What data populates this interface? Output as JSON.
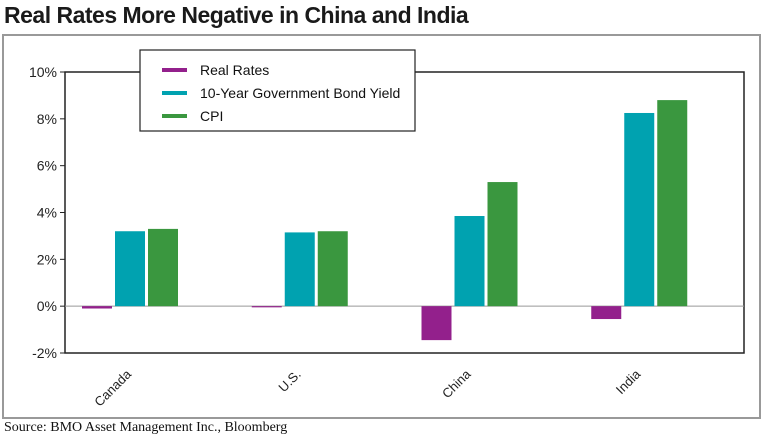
{
  "chart_data": {
    "type": "bar",
    "title": "Real Rates More Negative in China and India",
    "categories": [
      "Canada",
      "U.S.",
      "China",
      "India"
    ],
    "series": [
      {
        "name": "Real Rates",
        "color": "#93208c",
        "values": [
          -0.1,
          -0.05,
          -1.45,
          -0.55
        ]
      },
      {
        "name": "10-Year Government Bond Yield",
        "color": "#00a2b0",
        "values": [
          3.2,
          3.15,
          3.85,
          8.25
        ]
      },
      {
        "name": "CPI",
        "color": "#3a973f",
        "values": [
          3.3,
          3.2,
          5.3,
          8.8
        ]
      }
    ],
    "ylim": [
      -2,
      10
    ],
    "yticks": [
      -2,
      0,
      2,
      4,
      6,
      8,
      10
    ],
    "ytick_labels": [
      "-2%",
      "0%",
      "2%",
      "4%",
      "6%",
      "8%",
      "10%"
    ],
    "legend": "top-left",
    "xlabel": "",
    "ylabel": ""
  },
  "source": "Source: BMO Asset Management Inc., Bloomberg"
}
